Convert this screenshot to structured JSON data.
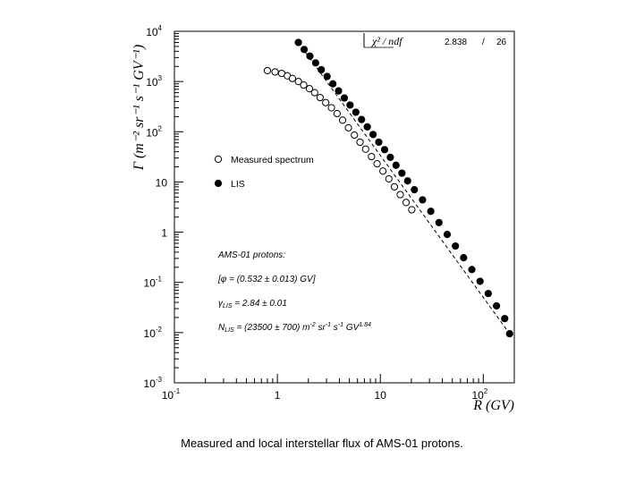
{
  "chart_data": {
    "type": "scatter",
    "xscale": "log",
    "yscale": "log",
    "xlim": [
      0.1,
      200
    ],
    "ylim": [
      0.001,
      10000
    ],
    "xlabel": "R (GV)",
    "ylabel": "Γ (m⁻² sr⁻¹ s⁻¹ GV⁻¹)",
    "x_ticks": [
      {
        "value": 0.1,
        "base": "10",
        "exp": "-1"
      },
      {
        "value": 1,
        "base": "1",
        "exp": ""
      },
      {
        "value": 10,
        "base": "10",
        "exp": ""
      },
      {
        "value": 100,
        "base": "10",
        "exp": "2"
      }
    ],
    "y_ticks": [
      {
        "value": 0.001,
        "base": "10",
        "exp": "-3"
      },
      {
        "value": 0.01,
        "base": "10",
        "exp": "-2"
      },
      {
        "value": 0.1,
        "base": "10",
        "exp": "-1"
      },
      {
        "value": 1,
        "base": "1",
        "exp": ""
      },
      {
        "value": 10,
        "base": "10",
        "exp": ""
      },
      {
        "value": 100,
        "base": "10",
        "exp": "2"
      },
      {
        "value": 1000,
        "base": "10",
        "exp": "3"
      },
      {
        "value": 10000,
        "base": "10",
        "exp": "4"
      }
    ],
    "legend_position": "center-left",
    "stats": {
      "label": "χ² / ndf",
      "chi2": "2.838",
      "sep": "/",
      "ndf": "26"
    },
    "fit": {
      "points": [
        [
          1.6,
          6000
        ],
        [
          180,
          0.0095
        ]
      ]
    },
    "series": [
      {
        "name": "Measured spectrum",
        "marker": "open-circle",
        "points": [
          [
            0.8,
            1650
          ],
          [
            0.95,
            1550
          ],
          [
            1.1,
            1450
          ],
          [
            1.25,
            1300
          ],
          [
            1.4,
            1150
          ],
          [
            1.6,
            1000
          ],
          [
            1.8,
            850
          ],
          [
            2.05,
            720
          ],
          [
            2.3,
            600
          ],
          [
            2.6,
            480
          ],
          [
            2.95,
            380
          ],
          [
            3.35,
            300
          ],
          [
            3.8,
            230
          ],
          [
            4.3,
            170
          ],
          [
            4.9,
            120
          ],
          [
            5.6,
            86
          ],
          [
            6.35,
            62
          ],
          [
            7.2,
            45
          ],
          [
            8.2,
            32
          ],
          [
            9.3,
            23
          ],
          [
            10.6,
            16.5
          ],
          [
            12.1,
            11.5
          ],
          [
            13.7,
            8.0
          ],
          [
            15.6,
            5.6
          ],
          [
            17.8,
            3.9
          ],
          [
            20.2,
            2.8
          ]
        ]
      },
      {
        "name": "LIS",
        "marker": "filled-circle",
        "points": [
          [
            1.6,
            6000
          ],
          [
            1.82,
            4350
          ],
          [
            2.07,
            3200
          ],
          [
            2.35,
            2350
          ],
          [
            2.67,
            1720
          ],
          [
            3.04,
            1260
          ],
          [
            3.46,
            900
          ],
          [
            3.93,
            650
          ],
          [
            4.47,
            470
          ],
          [
            5.08,
            340
          ],
          [
            5.78,
            245
          ],
          [
            6.57,
            175
          ],
          [
            7.47,
            125
          ],
          [
            8.5,
            88
          ],
          [
            9.66,
            62
          ],
          [
            11.0,
            44
          ],
          [
            12.5,
            31
          ],
          [
            14.2,
            21.5
          ],
          [
            16.2,
            15
          ],
          [
            18.4,
            10.5
          ],
          [
            21.4,
            7.0
          ],
          [
            25.7,
            4.4
          ],
          [
            30.9,
            2.6
          ],
          [
            37.1,
            1.55
          ],
          [
            44.6,
            0.9
          ],
          [
            53.6,
            0.53
          ],
          [
            64.4,
            0.31
          ],
          [
            77.4,
            0.18
          ],
          [
            93.0,
            0.105
          ],
          [
            111.8,
            0.06
          ],
          [
            134.3,
            0.034
          ],
          [
            161.4,
            0.019
          ],
          [
            180,
            0.0095
          ]
        ]
      }
    ],
    "annotation": {
      "title": "AMS-01 protons:",
      "phi": {
        "pre": "[",
        "sym": "φ",
        "text": " = (0.532 ± 0.013) GV]"
      },
      "gamma": {
        "sym": "γ",
        "sub": "LIS",
        "text": " = 2.84 ± 0.01"
      },
      "n": {
        "sym": "N",
        "sub": "LIS",
        "text": " = (23500 ± 700) m",
        "u1": "-2",
        "t2": " sr",
        "u2": "-1",
        "t3": " s",
        "u3": "-1",
        "t4": " GV",
        "u4": "1.84"
      }
    }
  },
  "caption": "Measured and local interstellar flux of AMS-01 protons."
}
